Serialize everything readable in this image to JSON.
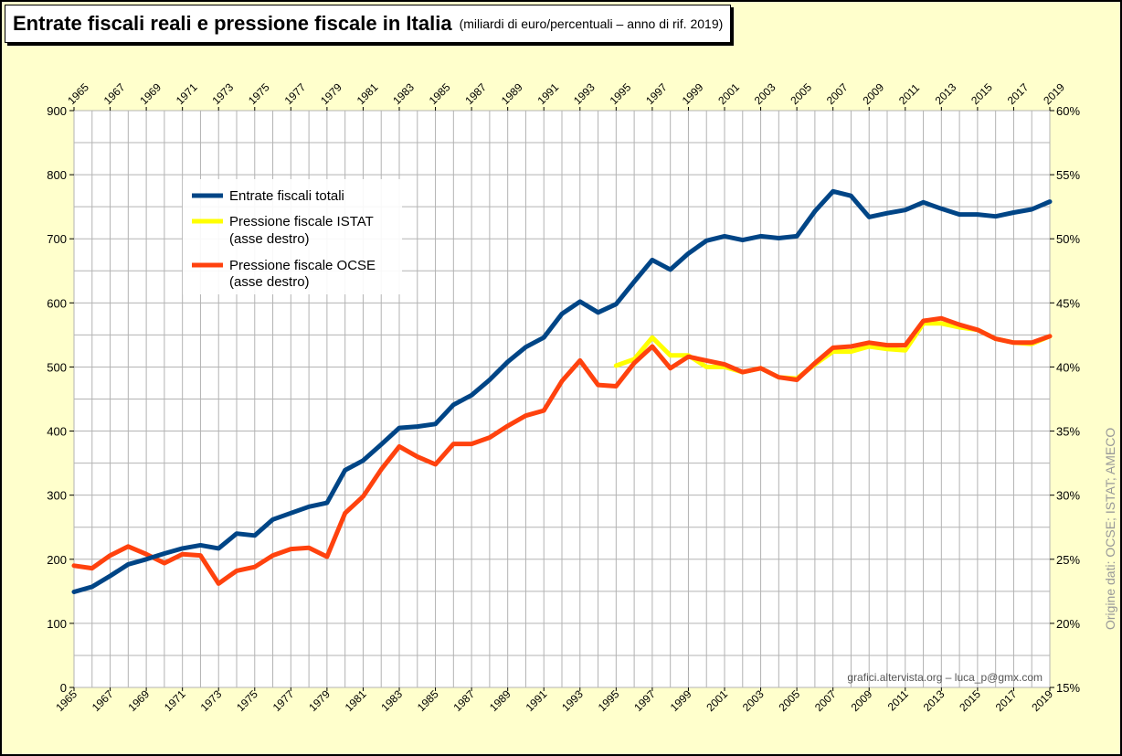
{
  "title": "Entrate fiscali reali e pressione fiscale in Italia",
  "subtitle": "(miliardi di euro/percentuali – anno di rif. 2019)",
  "credit": "grafici.altervista.org – luca_p@gmx.com",
  "source": "Origine dati: OCSE; ISTAT; AMECO",
  "colors": {
    "background": "#ffffcc",
    "plot_bg": "#ffffff",
    "grid": "#b3b3b3",
    "entrate": "#004586",
    "istat": "#ffff00",
    "ocse": "#ff420e"
  },
  "chart_data": {
    "type": "line",
    "x": [
      1965,
      1966,
      1967,
      1968,
      1969,
      1970,
      1971,
      1972,
      1973,
      1974,
      1975,
      1976,
      1977,
      1978,
      1979,
      1980,
      1981,
      1982,
      1983,
      1984,
      1985,
      1986,
      1987,
      1988,
      1989,
      1990,
      1991,
      1992,
      1993,
      1994,
      1995,
      1996,
      1997,
      1998,
      1999,
      2000,
      2001,
      2002,
      2003,
      2004,
      2005,
      2006,
      2007,
      2008,
      2009,
      2010,
      2011,
      2012,
      2013,
      2014,
      2015,
      2016,
      2017,
      2018,
      2019
    ],
    "x_tick_labels": [
      "1965",
      "1967",
      "1969",
      "1971",
      "1973",
      "1975",
      "1977",
      "1979",
      "1981",
      "1983",
      "1985",
      "1987",
      "1989",
      "1991",
      "1993",
      "1995",
      "1997",
      "1999",
      "2001",
      "2003",
      "2005",
      "2007",
      "2009",
      "2011",
      "2013",
      "2015",
      "2017",
      "2019"
    ],
    "y_left_ticks": [
      "0",
      "100",
      "200",
      "300",
      "400",
      "500",
      "600",
      "700",
      "800",
      "900"
    ],
    "y_right_ticks": [
      "15%",
      "20%",
      "25%",
      "30%",
      "35%",
      "40%",
      "45%",
      "50%",
      "55%",
      "60%"
    ],
    "ylim_left": [
      0,
      900
    ],
    "ylim_right": [
      15,
      60
    ],
    "grid": true,
    "legend_position": "upper-left",
    "series": [
      {
        "name": "Entrate fiscali totali",
        "axis": "left",
        "color": "#004586",
        "values": [
          149,
          157,
          174,
          192,
          200,
          209,
          217,
          222,
          217,
          240,
          237,
          262,
          272,
          282,
          288,
          339,
          354,
          379,
          405,
          407,
          411,
          441,
          456,
          480,
          508,
          531,
          546,
          583,
          602,
          585,
          598,
          633,
          667,
          652,
          677,
          697,
          704,
          698,
          704,
          701,
          704,
          743,
          774,
          767,
          734,
          740,
          745,
          757,
          747,
          738,
          738,
          735,
          741,
          746,
          758
        ]
      },
      {
        "name": "Pressione fiscale ISTAT",
        "name_line2": "(asse destro)",
        "axis": "right",
        "color": "#ffff00",
        "values": [
          null,
          null,
          null,
          null,
          null,
          null,
          null,
          null,
          null,
          null,
          null,
          null,
          null,
          null,
          null,
          null,
          null,
          null,
          null,
          null,
          null,
          null,
          null,
          null,
          null,
          null,
          null,
          null,
          null,
          null,
          40.1,
          40.6,
          42.3,
          40.9,
          40.9,
          40.0,
          40.0,
          39.6,
          39.9,
          39.2,
          39.1,
          40.2,
          41.2,
          41.2,
          41.6,
          41.4,
          41.3,
          43.4,
          43.4,
          43.1,
          42.9,
          42.2,
          41.9,
          41.8,
          42.4
        ]
      },
      {
        "name": "Pressione fiscale OCSE",
        "name_line2": "(asse destro)",
        "axis": "right",
        "color": "#ff420e",
        "values": [
          24.5,
          24.3,
          25.3,
          26.0,
          25.4,
          24.7,
          25.4,
          25.3,
          23.1,
          24.1,
          24.4,
          25.3,
          25.8,
          25.9,
          25.2,
          28.6,
          29.9,
          32.0,
          33.8,
          33.0,
          32.4,
          34.0,
          34.0,
          34.5,
          35.4,
          36.2,
          36.6,
          38.9,
          40.5,
          38.6,
          38.5,
          40.3,
          41.6,
          39.9,
          40.8,
          40.5,
          40.2,
          39.6,
          39.9,
          39.2,
          39.0,
          40.3,
          41.5,
          41.6,
          41.9,
          41.7,
          41.7,
          43.6,
          43.8,
          43.3,
          42.9,
          42.2,
          41.9,
          41.9,
          42.4
        ]
      }
    ]
  }
}
